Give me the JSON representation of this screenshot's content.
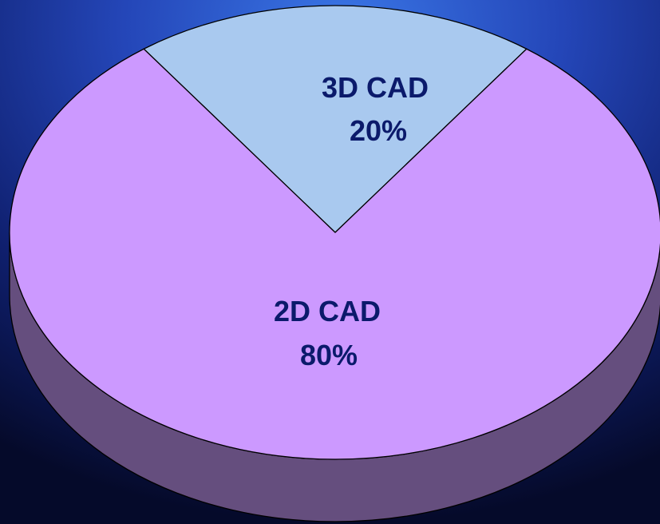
{
  "chart_data": {
    "type": "pie",
    "style": "3d",
    "categories": [
      "3D CAD",
      "2D CAD"
    ],
    "values": [
      20,
      80
    ],
    "value_labels": [
      "20%",
      "80%"
    ],
    "colors": {
      "3D CAD": "#a9c9ef",
      "2D CAD": "#cc99ff"
    },
    "side_color": "#654e7e",
    "outline_color": "#000000",
    "label_color": "#0b1a6b"
  }
}
